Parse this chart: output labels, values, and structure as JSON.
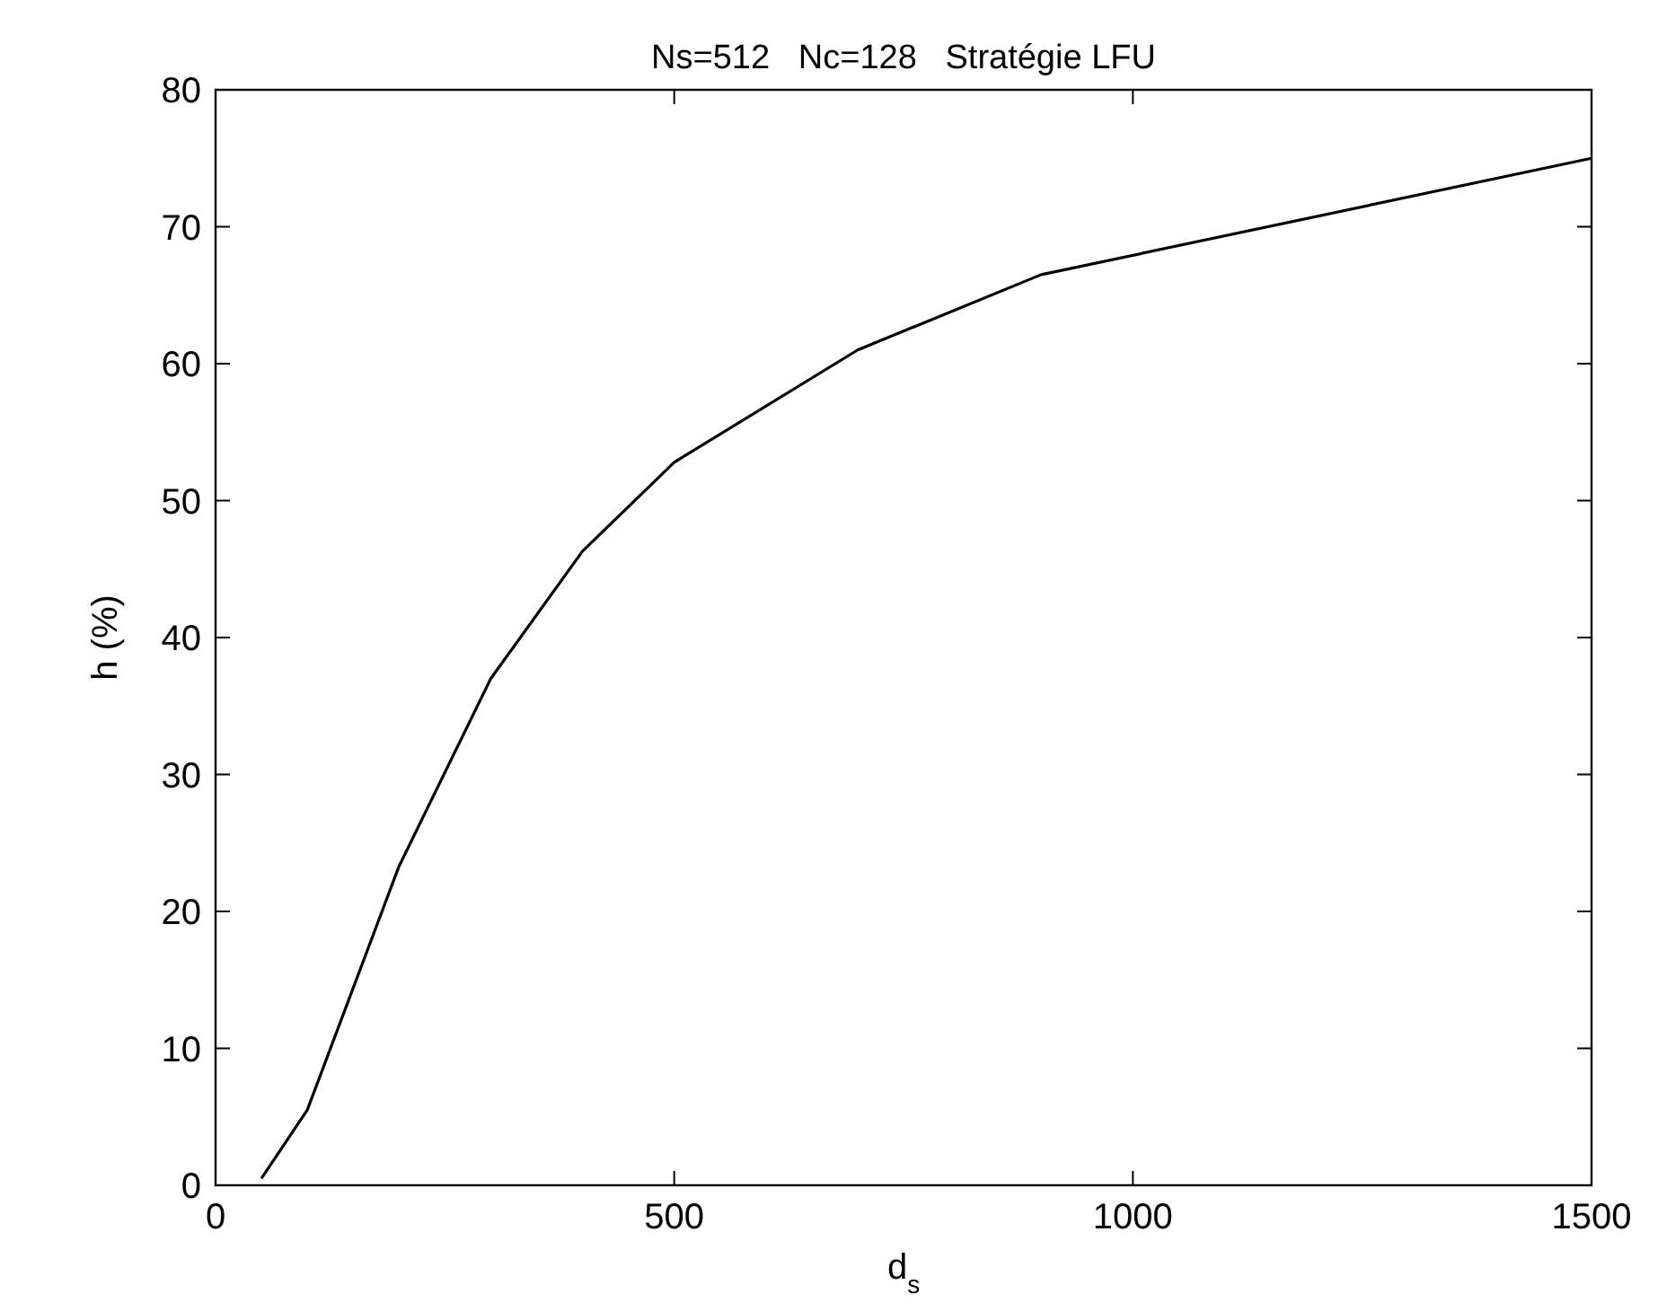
{
  "chart_data": {
    "type": "line",
    "title": "Ns=512   Nc=128   Stratégie LFU",
    "xlabel": "d$_{s}$",
    "ylabel": "h (%)",
    "x": [
      50,
      100,
      200,
      300,
      400,
      500,
      700,
      900,
      1500
    ],
    "series": [
      {
        "color": "#000000",
        "values": [
          0.5,
          5.5,
          23.3,
          37,
          46.3,
          52.8,
          61,
          66.5,
          75
        ]
      }
    ],
    "xlim": [
      0,
      1500
    ],
    "xticks": [
      0,
      500,
      1000,
      1500
    ],
    "ylim": [
      0,
      80
    ],
    "yticks": [
      0,
      10,
      20,
      30,
      40,
      50,
      60,
      70,
      80
    ],
    "grid": false,
    "marker": "none",
    "line_style": "solid"
  }
}
